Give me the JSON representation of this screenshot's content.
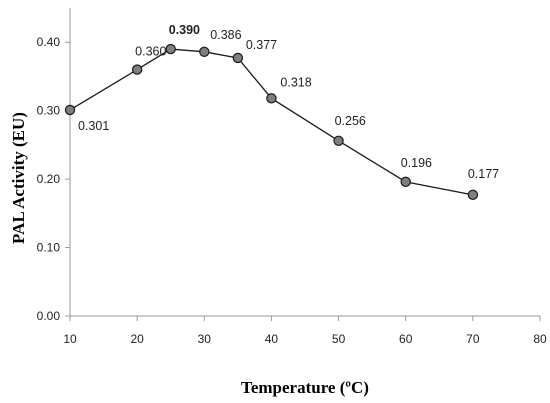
{
  "chart_data": {
    "type": "line",
    "title": "",
    "xlabel": "Temperature (ºC)",
    "ylabel": "PAL Activity (EU)",
    "xlim": [
      10,
      80
    ],
    "ylim": [
      0.0,
      0.45
    ],
    "xticks": [
      "10",
      "20",
      "30",
      "40",
      "50",
      "60",
      "70",
      "80"
    ],
    "yticks": [
      "0.00",
      "0.10",
      "0.20",
      "0.30",
      "0.40"
    ],
    "grid": false,
    "legend": "none",
    "series": [
      {
        "x": [
          10,
          20,
          25,
          30,
          35,
          40,
          50,
          60,
          70
        ],
        "y": [
          0.301,
          0.36,
          0.39,
          0.386,
          0.377,
          0.318,
          0.256,
          0.196,
          0.177
        ],
        "labels": [
          "0.301",
          "0.360",
          "0.390",
          "0.386",
          "0.377",
          "0.318",
          "0.256",
          "0.196",
          "0.177"
        ]
      }
    ],
    "colors": {
      "line": "#1a1a1a",
      "marker_fill": "#7f7f7f",
      "marker_edge": "#1a1a1a",
      "axis": "#9a9a9a"
    }
  }
}
